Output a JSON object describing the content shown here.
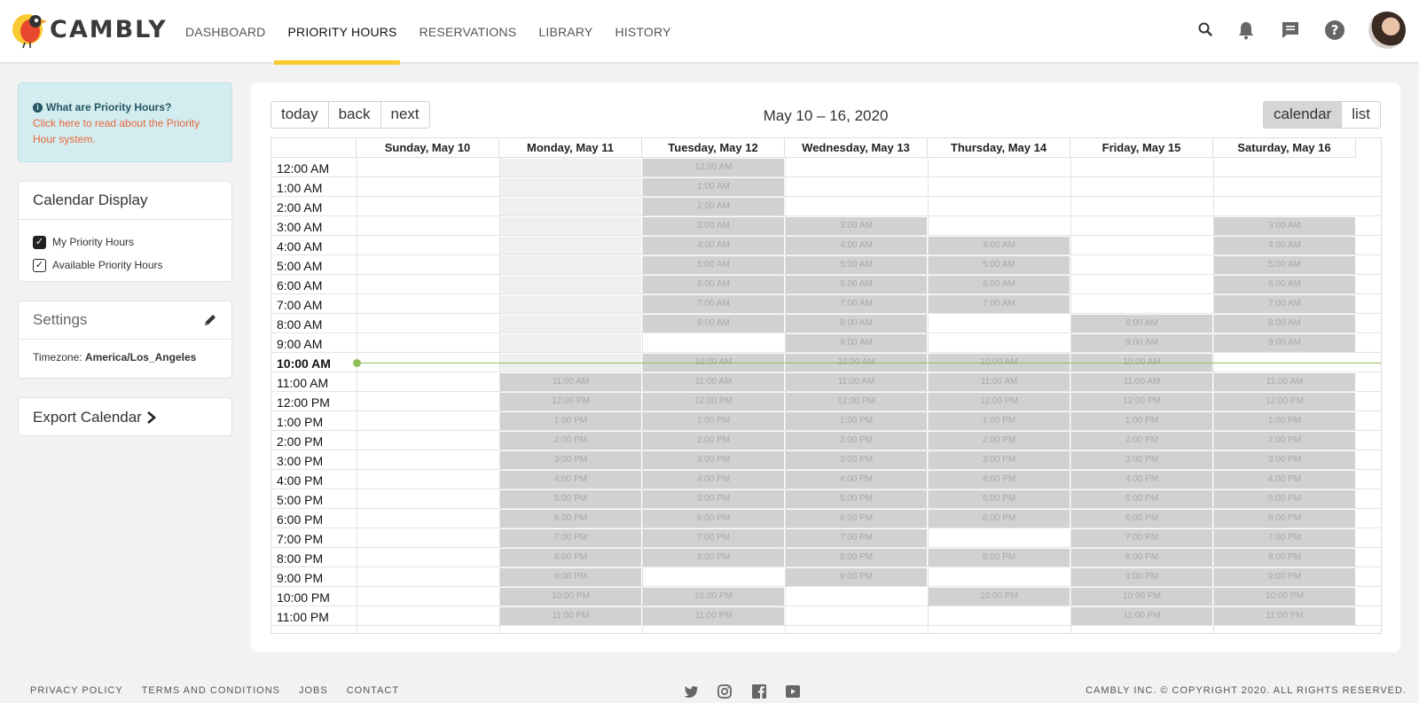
{
  "brand": {
    "name": "CAMBLY"
  },
  "nav": [
    {
      "label": "DASHBOARD",
      "active": false
    },
    {
      "label": "PRIORITY HOURS",
      "active": true
    },
    {
      "label": "RESERVATIONS",
      "active": false
    },
    {
      "label": "LIBRARY",
      "active": false
    },
    {
      "label": "HISTORY",
      "active": false
    }
  ],
  "header_icons": [
    "search-icon",
    "bell-icon",
    "chat-icon",
    "help-icon"
  ],
  "info": {
    "title": "What are Priority Hours?",
    "link": "Click here to read about the Priority Hour system."
  },
  "calendar_display": {
    "title": "Calendar Display",
    "options": [
      {
        "label": "My Priority Hours",
        "checked": true
      },
      {
        "label": "Available Priority Hours",
        "checked": true
      }
    ]
  },
  "settings": {
    "title": "Settings",
    "timezone_label": "Timezone:",
    "timezone_value": "America/Los_Angeles"
  },
  "export": {
    "label": "Export Calendar"
  },
  "toolbar": {
    "today": "today",
    "back": "back",
    "next": "next",
    "range": "May 10 – 16, 2020",
    "view_calendar": "calendar",
    "view_list": "list"
  },
  "days": [
    "Sunday, May 10",
    "Monday, May 11",
    "Tuesday, May 12",
    "Wednesday, May 13",
    "Thursday, May 14",
    "Friday, May 15",
    "Saturday, May 16"
  ],
  "hours": [
    "12:00 AM",
    "1:00 AM",
    "2:00 AM",
    "3:00 AM",
    "4:00 AM",
    "5:00 AM",
    "6:00 AM",
    "7:00 AM",
    "8:00 AM",
    "9:00 AM",
    "10:00 AM",
    "11:00 AM",
    "12:00 PM",
    "1:00 PM",
    "2:00 PM",
    "3:00 PM",
    "4:00 PM",
    "5:00 PM",
    "6:00 PM",
    "7:00 PM",
    "8:00 PM",
    "9:00 PM",
    "10:00 PM",
    "11:00 PM"
  ],
  "current_hour": "10:00 AM",
  "available": {
    "Sunday, May 10": [],
    "Monday, May 11": [
      "11:00 AM",
      "12:00 PM",
      "1:00 PM",
      "2:00 PM",
      "3:00 PM",
      "4:00 PM",
      "5:00 PM",
      "6:00 PM",
      "7:00 PM",
      "8:00 PM",
      "9:00 PM",
      "10:00 PM",
      "11:00 PM"
    ],
    "Tuesday, May 12": [
      "12:00 AM",
      "1:00 AM",
      "2:00 AM",
      "3:00 AM",
      "4:00 AM",
      "5:00 AM",
      "6:00 AM",
      "7:00 AM",
      "8:00 AM",
      "10:00 AM",
      "11:00 AM",
      "12:00 PM",
      "1:00 PM",
      "2:00 PM",
      "3:00 PM",
      "4:00 PM",
      "5:00 PM",
      "6:00 PM",
      "7:00 PM",
      "8:00 PM",
      "10:00 PM",
      "11:00 PM"
    ],
    "Wednesday, May 13": [
      "3:00 AM",
      "4:00 AM",
      "5:00 AM",
      "6:00 AM",
      "7:00 AM",
      "8:00 AM",
      "9:00 AM",
      "10:00 AM",
      "11:00 AM",
      "12:00 PM",
      "1:00 PM",
      "2:00 PM",
      "3:00 PM",
      "4:00 PM",
      "5:00 PM",
      "6:00 PM",
      "7:00 PM",
      "8:00 PM",
      "9:00 PM"
    ],
    "Thursday, May 14": [
      "4:00 AM",
      "5:00 AM",
      "6:00 AM",
      "7:00 AM",
      "10:00 AM",
      "11:00 AM",
      "12:00 PM",
      "1:00 PM",
      "2:00 PM",
      "3:00 PM",
      "4:00 PM",
      "5:00 PM",
      "6:00 PM",
      "8:00 PM",
      "10:00 PM"
    ],
    "Friday, May 15": [
      "8:00 AM",
      "9:00 AM",
      "10:00 AM",
      "11:00 AM",
      "12:00 PM",
      "1:00 PM",
      "2:00 PM",
      "3:00 PM",
      "4:00 PM",
      "5:00 PM",
      "6:00 PM",
      "7:00 PM",
      "8:00 PM",
      "9:00 PM",
      "10:00 PM",
      "11:00 PM"
    ],
    "Saturday, May 16": [
      "3:00 AM",
      "4:00 AM",
      "5:00 AM",
      "6:00 AM",
      "7:00 AM",
      "8:00 AM",
      "9:00 AM",
      "11:00 AM",
      "12:00 PM",
      "1:00 PM",
      "2:00 PM",
      "3:00 PM",
      "4:00 PM",
      "5:00 PM",
      "6:00 PM",
      "7:00 PM",
      "8:00 PM",
      "9:00 PM",
      "10:00 PM",
      "11:00 PM"
    ]
  },
  "past_unavailable": {
    "Monday, May 11": [
      "12:00 AM",
      "1:00 AM",
      "2:00 AM",
      "3:00 AM",
      "4:00 AM",
      "5:00 AM",
      "6:00 AM",
      "7:00 AM",
      "8:00 AM",
      "9:00 AM",
      "10:00 AM"
    ]
  },
  "footer": {
    "links": [
      "PRIVACY POLICY",
      "TERMS AND CONDITIONS",
      "JOBS",
      "CONTACT"
    ],
    "social": [
      "twitter-icon",
      "instagram-icon",
      "facebook-icon",
      "youtube-icon"
    ],
    "copyright": "CAMBLY INC. © COPYRIGHT 2020. ALL RIGHTS RESERVED."
  },
  "colors": {
    "accent": "#f8c931",
    "slot": "#d1d1d1",
    "now_line": "#8fbf5a",
    "link": "#e8673c",
    "info_bg": "#d3ecef"
  }
}
